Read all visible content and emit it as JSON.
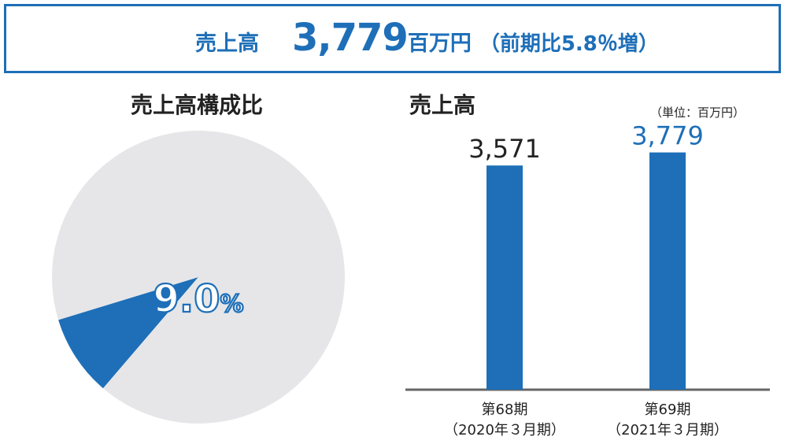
{
  "banner": {
    "label": "売上高",
    "value": "3,779",
    "unit": "百万円",
    "comparison": "（前期比5.8％増）"
  },
  "pie": {
    "title": "売上高構成比",
    "percent_label": "9.0",
    "percent_sign": "%"
  },
  "bar": {
    "title": "売上高",
    "unit_note": "（単位：百万円）"
  },
  "colors": {
    "accent": "#1e6fb8",
    "pie_rest": "#e6e6e8",
    "axis": "#666666",
    "text": "#222222"
  },
  "chart_data": [
    {
      "type": "pie",
      "title": "売上高構成比",
      "slices": [
        {
          "label": "",
          "value": 9.0,
          "color": "#1e6fb8"
        },
        {
          "label": "",
          "value": 91.0,
          "color": "#e6e6e8"
        }
      ],
      "data_label": "9.0%"
    },
    {
      "type": "bar",
      "title": "売上高",
      "unit": "（単位：百万円）",
      "categories": [
        "第68期\n（2020年３月期）",
        "第69期\n（2021年３月期）"
      ],
      "values": [
        3571,
        3779
      ],
      "value_labels": [
        "3,571",
        "3,779"
      ],
      "value_label_colors": [
        "#222222",
        "#1e6fb8"
      ],
      "ylim": [
        0,
        4000
      ],
      "grid": false
    }
  ]
}
